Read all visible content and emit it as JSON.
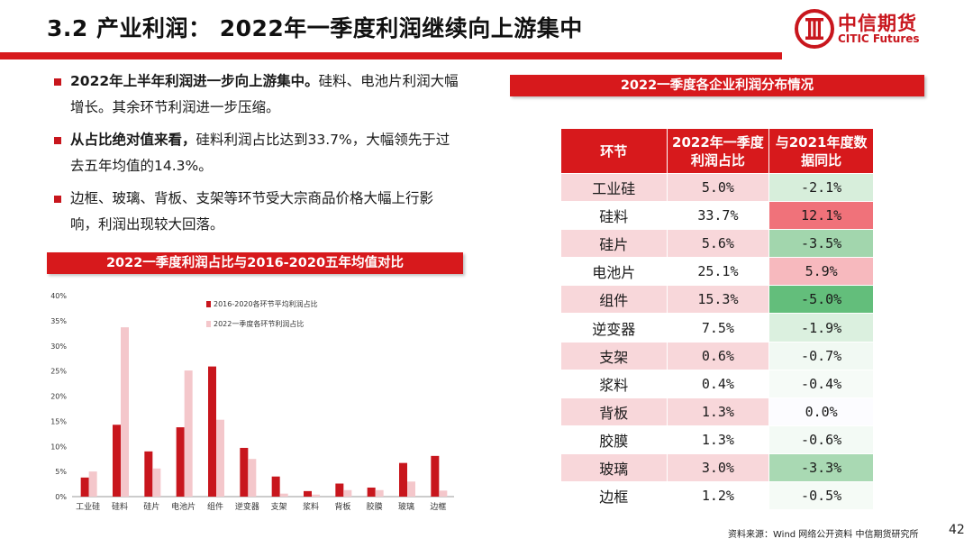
{
  "header": {
    "title": "3.2 产业利润：  2022年一季度利润继续向上游集中",
    "logo_cn": "中信期货",
    "logo_en": "CITIC Futures"
  },
  "bullets": [
    {
      "bold": "2022年上半年利润进一步向上游集中。",
      "text": "硅料、电池片利润大幅增长。其余环节利润进一步压缩。"
    },
    {
      "bold": "从占比绝对值来看，",
      "text": "硅料利润占比达到33.7%，大幅领先于过去五年均值的14.3%。"
    },
    {
      "bold": "",
      "text": "边框、玻璃、背板、支架等环节受大宗商品价格大幅上行影响，利润出现较大回落。"
    }
  ],
  "left_band": "2022一季度利润占比与2016-2020五年均值对比",
  "right_band": "2022一季度各企业利润分布情况",
  "chart_data": {
    "type": "bar",
    "categories": [
      "工业硅",
      "硅料",
      "硅片",
      "电池片",
      "组件",
      "逆变器",
      "支架",
      "浆料",
      "背板",
      "胶膜",
      "玻璃",
      "边框"
    ],
    "series": [
      {
        "name": "2016-2020各环节平均利润占比",
        "color": "#c8161d",
        "values": [
          3.8,
          14.3,
          9.0,
          13.8,
          25.9,
          9.7,
          4.0,
          1.1,
          2.6,
          1.8,
          6.7,
          8.1
        ]
      },
      {
        "name": "2022一季度各环节利润占比",
        "color": "#f4c7cb",
        "values": [
          5.0,
          33.7,
          5.6,
          25.1,
          15.3,
          7.5,
          0.6,
          0.4,
          1.3,
          1.3,
          3.0,
          1.2
        ]
      }
    ],
    "yticks": [
      "0%",
      "5%",
      "10%",
      "15%",
      "20%",
      "25%",
      "30%",
      "35%",
      "40%"
    ],
    "ylim": [
      0,
      40
    ],
    "legend_position": "top-center"
  },
  "table": {
    "headers": [
      "环节",
      "2022年一季度利润占比",
      "与2021年度数据同比"
    ],
    "rows": [
      {
        "segment": "工业硅",
        "share": "5.0%",
        "yoy": "-2.1%",
        "yoy_color": "#d7eedb"
      },
      {
        "segment": "硅料",
        "share": "33.7%",
        "yoy": "12.1%",
        "yoy_color": "#f0727a"
      },
      {
        "segment": "硅片",
        "share": "5.6%",
        "yoy": "-3.5%",
        "yoy_color": "#a2d6ad"
      },
      {
        "segment": "电池片",
        "share": "25.1%",
        "yoy": "5.9%",
        "yoy_color": "#f7b9be"
      },
      {
        "segment": "组件",
        "share": "15.3%",
        "yoy": "-5.0%",
        "yoy_color": "#63be7b"
      },
      {
        "segment": "逆变器",
        "share": "7.5%",
        "yoy": "-1.9%",
        "yoy_color": "#dbf0df"
      },
      {
        "segment": "支架",
        "share": "0.6%",
        "yoy": "-0.7%",
        "yoy_color": "#f1f9f3"
      },
      {
        "segment": "浆料",
        "share": "0.4%",
        "yoy": "-0.4%",
        "yoy_color": "#f6fbf7"
      },
      {
        "segment": "背板",
        "share": "1.3%",
        "yoy": "0.0%",
        "yoy_color": "#fcfcff"
      },
      {
        "segment": "胶膜",
        "share": "1.3%",
        "yoy": "-0.6%",
        "yoy_color": "#f3faf5"
      },
      {
        "segment": "玻璃",
        "share": "3.0%",
        "yoy": "-3.3%",
        "yoy_color": "#a9d9b3"
      },
      {
        "segment": "边框",
        "share": "1.2%",
        "yoy": "-0.5%",
        "yoy_color": "#f5fbf6"
      }
    ]
  },
  "footer": {
    "source": "资料来源：Wind 网络公开资料 中信期货研究所",
    "page": "42"
  },
  "colors": {
    "brand_red": "#d7191c",
    "row_pink": "#f8d7da"
  }
}
